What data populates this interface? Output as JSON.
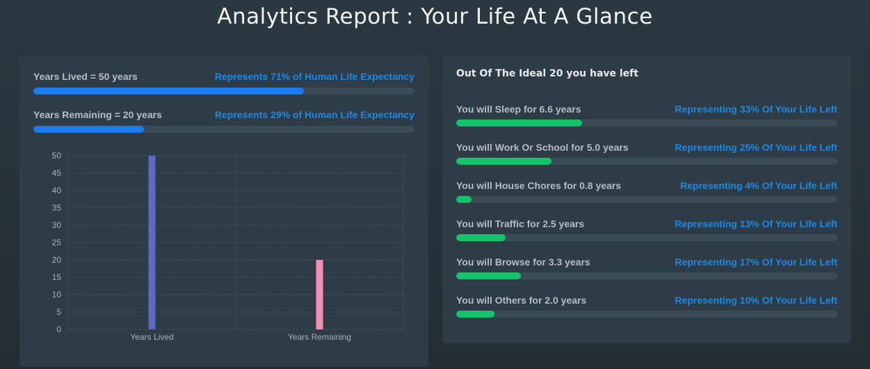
{
  "header": {
    "title": "Analytics Report : Your Life At A Glance"
  },
  "summary": [
    {
      "label": "Years Lived = 50 years",
      "note": "Represents 71% of Human Life Expectancy",
      "percent": 71
    },
    {
      "label": "Years Remaining = 20 years",
      "note": "Represents 29% of Human Life Expectancy",
      "percent": 29
    }
  ],
  "breakdown": {
    "heading": "Out Of The Ideal 20 you have left",
    "items": [
      {
        "label": "You will Sleep for 6.6 years",
        "note": "Representing 33% Of Your Life Left",
        "percent": 33
      },
      {
        "label": "You will Work Or School for 5.0 years",
        "note": "Representing 25% Of Your Life Left",
        "percent": 25
      },
      {
        "label": "You will House Chores for 0.8 years",
        "note": "Representing 4% Of Your Life Left",
        "percent": 4
      },
      {
        "label": "You will Traffic for 2.5 years",
        "note": "Representing 13% Of Your Life Left",
        "percent": 13
      },
      {
        "label": "You will Browse for 3.3 years",
        "note": "Representing 17% Of Your Life Left",
        "percent": 17
      },
      {
        "label": "You will Others for 2.0 years",
        "note": "Representing 10% Of Your Life Left",
        "percent": 10
      }
    ]
  },
  "colors": {
    "summary_bar": "#1a7cf0",
    "breakdown_bar": "#14c36b",
    "note_text": "#1e88e5"
  },
  "chart_data": {
    "type": "bar",
    "categories": [
      "Years Lived",
      "Years Remaining"
    ],
    "values": [
      50,
      20
    ],
    "colors": [
      "#5c6bc0",
      "#f48fb1"
    ],
    "title": "",
    "xlabel": "",
    "ylabel": "",
    "ylim": [
      0,
      50
    ],
    "yticks": [
      0,
      5,
      10,
      15,
      20,
      25,
      30,
      35,
      40,
      45,
      50
    ],
    "grid": true,
    "legend": "none"
  }
}
